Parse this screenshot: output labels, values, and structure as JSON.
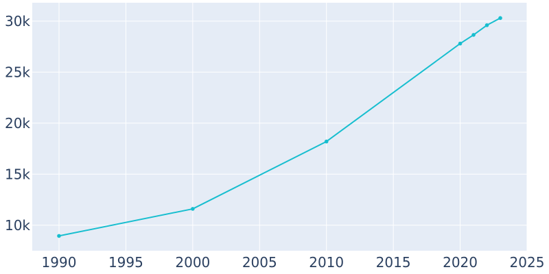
{
  "chart_data": {
    "type": "line",
    "title": "",
    "xlabel": "",
    "ylabel": "",
    "xlim": [
      1988,
      2025
    ],
    "ylim": [
      7500,
      31800
    ],
    "x_ticks": [
      1990,
      1995,
      2000,
      2005,
      2010,
      2015,
      2020,
      2025
    ],
    "x_tick_labels": [
      "1990",
      "1995",
      "2000",
      "2005",
      "2010",
      "2015",
      "2020",
      "2025"
    ],
    "y_ticks": [
      10000,
      15000,
      20000,
      25000,
      30000
    ],
    "y_tick_labels": [
      "10k",
      "15k",
      "20k",
      "25k",
      "30k"
    ],
    "grid": true,
    "legend": "none",
    "series": [
      {
        "x": [
          1990,
          2000,
          2010,
          2020,
          2021,
          2022,
          2023
        ],
        "values": [
          8950,
          11600,
          18200,
          27800,
          28650,
          29600,
          30300
        ]
      }
    ],
    "colors": {
      "plot_background": "#e5ecf6",
      "grid": "#ffffff",
      "line": "#17becf",
      "tick_text": "#2a3f5f"
    }
  }
}
